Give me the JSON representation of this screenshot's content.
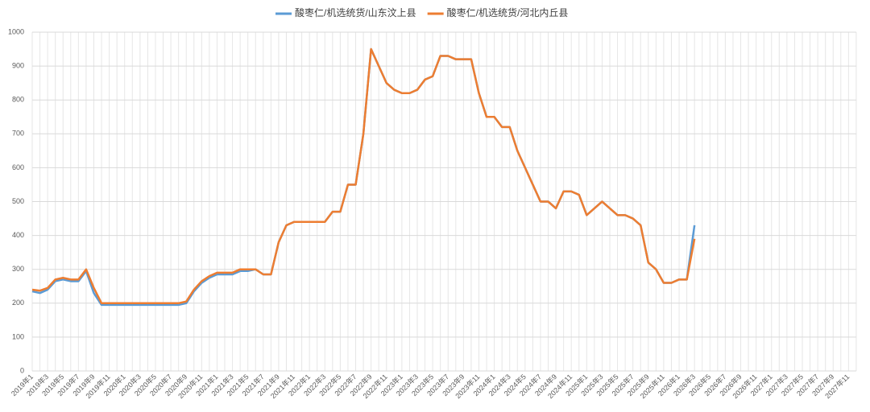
{
  "chart_data": {
    "type": "line",
    "categories": [
      "2019年1",
      null,
      "2019年3",
      null,
      "2019年5",
      null,
      "2019年7",
      null,
      "2019年9",
      null,
      "2019年11",
      null,
      "2020年1",
      null,
      "2020年3",
      null,
      "2020年5",
      null,
      "2020年7",
      null,
      "2020年9",
      null,
      "2020年11",
      null,
      "2021年1",
      null,
      "2021年3",
      null,
      "2021年5",
      null,
      "2021年7",
      null,
      "2021年9",
      null,
      "2021年11",
      null,
      "2022年1",
      null,
      "2022年3",
      null,
      "2022年5",
      null,
      "2022年7",
      null,
      "2022年9",
      null,
      "2022年11",
      null,
      "2023年1",
      null,
      "2023年3",
      null,
      "2023年5",
      null,
      "2023年7",
      null,
      "2023年9",
      null,
      "2023年11",
      null,
      "2024年1",
      null,
      "2024年3",
      null,
      "2024年5",
      null,
      "2024年7",
      null,
      "2024年9",
      null,
      "2024年11",
      null,
      "2025年1",
      null,
      "2025年3",
      null,
      "2025年5",
      null,
      "2025年7",
      null,
      "2025年9",
      null,
      "2025年11",
      null,
      "2026年1",
      null,
      "2026年3",
      null,
      "2026年5",
      null,
      "2026年7",
      null,
      "2026年9",
      null,
      "2026年11",
      null,
      "2027年1",
      null,
      "2027年3",
      null,
      "2027年5",
      null,
      "2027年7",
      null,
      "2027年9",
      null,
      "2027年11",
      null
    ],
    "series": [
      {
        "name": "酸枣仁/机选统货/山东汶上县",
        "color": "#5b9bd5",
        "values": [
          235,
          230,
          240,
          265,
          270,
          265,
          265,
          295,
          230,
          195,
          195,
          195,
          195,
          195,
          195,
          195,
          195,
          195,
          195,
          195,
          200,
          235,
          260,
          275,
          285,
          285,
          285,
          295,
          295,
          300,
          285,
          285,
          380,
          430,
          440,
          440,
          440,
          440,
          440,
          470,
          470,
          550,
          550,
          700,
          950,
          900,
          850,
          830,
          820,
          820,
          830,
          860,
          870,
          930,
          930,
          920,
          920,
          920,
          820,
          750,
          750,
          720,
          720,
          650,
          600,
          550,
          500,
          500,
          480,
          530,
          530,
          520,
          460,
          480,
          500,
          480,
          460,
          460,
          450,
          430,
          320,
          300,
          260,
          260,
          270,
          270,
          430,
          null,
          null,
          null,
          null,
          null,
          null,
          null,
          null,
          null,
          null,
          null,
          null,
          null,
          null,
          null,
          null,
          null,
          null,
          null,
          null,
          null
        ]
      },
      {
        "name": "酸枣仁/机选统货/河北内丘县",
        "color": "#ed7d31",
        "values": [
          240,
          237,
          245,
          270,
          275,
          270,
          270,
          300,
          245,
          200,
          200,
          200,
          200,
          200,
          200,
          200,
          200,
          200,
          200,
          200,
          205,
          240,
          265,
          280,
          290,
          290,
          290,
          300,
          300,
          300,
          285,
          285,
          380,
          430,
          440,
          440,
          440,
          440,
          440,
          470,
          470,
          550,
          550,
          700,
          950,
          900,
          850,
          830,
          820,
          820,
          830,
          860,
          870,
          930,
          930,
          920,
          920,
          920,
          820,
          750,
          750,
          720,
          720,
          650,
          600,
          550,
          500,
          500,
          480,
          530,
          530,
          520,
          460,
          480,
          500,
          480,
          460,
          460,
          450,
          430,
          320,
          300,
          260,
          260,
          270,
          270,
          390,
          null,
          null,
          null,
          null,
          null,
          null,
          null,
          null,
          null,
          null,
          null,
          null,
          null,
          null,
          null,
          null,
          null,
          null,
          null,
          null,
          null
        ]
      }
    ],
    "ylim": [
      0,
      1000
    ],
    "yticks": [
      0,
      100,
      200,
      300,
      400,
      500,
      600,
      700,
      800,
      900,
      1000
    ],
    "grid": true,
    "legend": "top"
  }
}
